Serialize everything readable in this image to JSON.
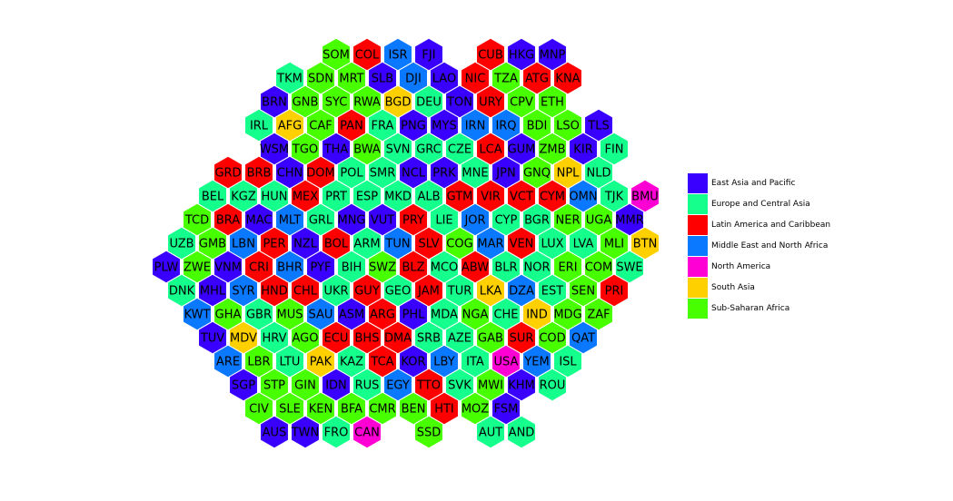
{
  "chart_data": {
    "type": "hexbin-map",
    "legend": {
      "placement": "right",
      "entries": [
        {
          "key": "EAP",
          "label": "East Asia and Pacific",
          "color": "#3A00FF"
        },
        {
          "key": "ECA",
          "label": "Europe and Central Asia",
          "color": "#14FF8C"
        },
        {
          "key": "LAC",
          "label": "Latin America and Caribbean",
          "color": "#FF0000"
        },
        {
          "key": "MENA",
          "label": "Middle East and North Africa",
          "color": "#0A78FF"
        },
        {
          "key": "NA",
          "label": "North America",
          "color": "#FF00D4"
        },
        {
          "key": "SA",
          "label": "South Asia",
          "color": "#FFD000"
        },
        {
          "key": "SSA",
          "label": "Sub-Saharan Africa",
          "color": "#48FF00"
        }
      ]
    },
    "rows": [
      {
        "cells": [
          [
            "SOM",
            "SSA",
            5
          ],
          [
            "COL",
            "LAC",
            6
          ],
          [
            "ISR",
            "MENA",
            7
          ],
          [
            "FJI",
            "EAP",
            8
          ],
          [
            "CUB",
            "LAC",
            10
          ],
          [
            "HKG",
            "EAP",
            11
          ],
          [
            "MNP",
            "EAP",
            12
          ]
        ]
      },
      {
        "cells": [
          [
            "TKM",
            "ECA",
            4
          ],
          [
            "SDN",
            "SSA",
            5
          ],
          [
            "MRT",
            "SSA",
            6
          ],
          [
            "SLB",
            "EAP",
            7
          ],
          [
            "DJI",
            "MENA",
            8
          ],
          [
            "LAO",
            "EAP",
            9
          ],
          [
            "NIC",
            "LAC",
            10
          ],
          [
            "TZA",
            "SSA",
            11
          ],
          [
            "ATG",
            "LAC",
            12
          ],
          [
            "KNA",
            "LAC",
            13
          ]
        ]
      },
      {
        "cells": [
          [
            "BRN",
            "EAP",
            3
          ],
          [
            "GNB",
            "SSA",
            4
          ],
          [
            "SYC",
            "SSA",
            5
          ],
          [
            "RWA",
            "SSA",
            6
          ],
          [
            "BGD",
            "SA",
            7
          ],
          [
            "DEU",
            "ECA",
            8
          ],
          [
            "TON",
            "EAP",
            9
          ],
          [
            "URY",
            "LAC",
            10
          ],
          [
            "CPV",
            "SSA",
            11
          ],
          [
            "ETH",
            "SSA",
            12
          ]
        ]
      },
      {
        "cells": [
          [
            "IRL",
            "ECA",
            3
          ],
          [
            "AFG",
            "SA",
            4
          ],
          [
            "CAF",
            "SSA",
            5
          ],
          [
            "PAN",
            "LAC",
            6
          ],
          [
            "FRA",
            "ECA",
            7
          ],
          [
            "PNG",
            "EAP",
            8
          ],
          [
            "MYS",
            "EAP",
            9
          ],
          [
            "IRN",
            "MENA",
            10
          ],
          [
            "IRQ",
            "MENA",
            11
          ],
          [
            "BDI",
            "SSA",
            12
          ],
          [
            "LSO",
            "SSA",
            13
          ],
          [
            "TLS",
            "EAP",
            14
          ]
        ]
      },
      {
        "cells": [
          [
            "WSM",
            "EAP",
            3
          ],
          [
            "TGO",
            "SSA",
            4
          ],
          [
            "THA",
            "EAP",
            5
          ],
          [
            "BWA",
            "SSA",
            6
          ],
          [
            "SVN",
            "ECA",
            7
          ],
          [
            "GRC",
            "ECA",
            8
          ],
          [
            "CZE",
            "ECA",
            9
          ],
          [
            "LCA",
            "LAC",
            10
          ],
          [
            "GUM",
            "EAP",
            11
          ],
          [
            "ZMB",
            "SSA",
            12
          ],
          [
            "KIR",
            "EAP",
            13
          ],
          [
            "FIN",
            "ECA",
            14
          ]
        ]
      },
      {
        "cells": [
          [
            "GRD",
            "LAC",
            2
          ],
          [
            "BRB",
            "LAC",
            3
          ],
          [
            "CHN",
            "EAP",
            4
          ],
          [
            "DOM",
            "LAC",
            5
          ],
          [
            "POL",
            "ECA",
            6
          ],
          [
            "SMR",
            "ECA",
            7
          ],
          [
            "NCL",
            "EAP",
            8
          ],
          [
            "PRK",
            "EAP",
            9
          ],
          [
            "MNE",
            "ECA",
            10
          ],
          [
            "JPN",
            "EAP",
            11
          ],
          [
            "GNQ",
            "SSA",
            12
          ],
          [
            "NPL",
            "SA",
            13
          ],
          [
            "NLD",
            "ECA",
            14
          ]
        ]
      },
      {
        "cells": [
          [
            "BEL",
            "ECA",
            1
          ],
          [
            "KGZ",
            "ECA",
            2
          ],
          [
            "HUN",
            "ECA",
            3
          ],
          [
            "MEX",
            "LAC",
            4
          ],
          [
            "PRT",
            "ECA",
            5
          ],
          [
            "ESP",
            "ECA",
            6
          ],
          [
            "MKD",
            "ECA",
            7
          ],
          [
            "ALB",
            "ECA",
            8
          ],
          [
            "GTM",
            "LAC",
            9
          ],
          [
            "VIR",
            "LAC",
            10
          ],
          [
            "VCT",
            "LAC",
            11
          ],
          [
            "CYM",
            "LAC",
            12
          ],
          [
            "OMN",
            "MENA",
            13
          ],
          [
            "TJK",
            "ECA",
            14
          ],
          [
            "BMU",
            "NA",
            15
          ]
        ]
      },
      {
        "cells": [
          [
            "TCD",
            "SSA",
            1
          ],
          [
            "BRA",
            "LAC",
            2
          ],
          [
            "MAC",
            "EAP",
            3
          ],
          [
            "MLT",
            "MENA",
            4
          ],
          [
            "GRL",
            "ECA",
            5
          ],
          [
            "MNG",
            "EAP",
            6
          ],
          [
            "VUT",
            "EAP",
            7
          ],
          [
            "PRY",
            "LAC",
            8
          ],
          [
            "LIE",
            "ECA",
            9
          ],
          [
            "JOR",
            "MENA",
            10
          ],
          [
            "CYP",
            "ECA",
            11
          ],
          [
            "BGR",
            "ECA",
            12
          ],
          [
            "NER",
            "SSA",
            13
          ],
          [
            "UGA",
            "SSA",
            14
          ],
          [
            "MMR",
            "EAP",
            15
          ]
        ]
      },
      {
        "cells": [
          [
            "UZB",
            "ECA",
            0
          ],
          [
            "GMB",
            "SSA",
            1
          ],
          [
            "LBN",
            "MENA",
            2
          ],
          [
            "PER",
            "LAC",
            3
          ],
          [
            "NZL",
            "EAP",
            4
          ],
          [
            "BOL",
            "LAC",
            5
          ],
          [
            "ARM",
            "ECA",
            6
          ],
          [
            "TUN",
            "MENA",
            7
          ],
          [
            "SLV",
            "LAC",
            8
          ],
          [
            "COG",
            "SSA",
            9
          ],
          [
            "MAR",
            "MENA",
            10
          ],
          [
            "VEN",
            "LAC",
            11
          ],
          [
            "LUX",
            "ECA",
            12
          ],
          [
            "LVA",
            "ECA",
            13
          ],
          [
            "MLI",
            "SSA",
            14
          ],
          [
            "BTN",
            "SA",
            15
          ]
        ]
      },
      {
        "cells": [
          [
            "PLW",
            "EAP",
            0
          ],
          [
            "ZWE",
            "SSA",
            1
          ],
          [
            "VNM",
            "EAP",
            2
          ],
          [
            "CRI",
            "LAC",
            3
          ],
          [
            "BHR",
            "MENA",
            4
          ],
          [
            "PYF",
            "EAP",
            5
          ],
          [
            "BIH",
            "ECA",
            6
          ],
          [
            "SWZ",
            "SSA",
            7
          ],
          [
            "BLZ",
            "LAC",
            8
          ],
          [
            "MCO",
            "ECA",
            9
          ],
          [
            "ABW",
            "LAC",
            10
          ],
          [
            "BLR",
            "ECA",
            11
          ],
          [
            "NOR",
            "ECA",
            12
          ],
          [
            "ERI",
            "SSA",
            13
          ],
          [
            "COM",
            "SSA",
            14
          ],
          [
            "SWE",
            "ECA",
            15
          ]
        ]
      },
      {
        "cells": [
          [
            "DNK",
            "ECA",
            0
          ],
          [
            "MHL",
            "EAP",
            1
          ],
          [
            "SYR",
            "MENA",
            2
          ],
          [
            "HND",
            "LAC",
            3
          ],
          [
            "CHL",
            "LAC",
            4
          ],
          [
            "UKR",
            "ECA",
            5
          ],
          [
            "GUY",
            "LAC",
            6
          ],
          [
            "GEO",
            "ECA",
            7
          ],
          [
            "JAM",
            "LAC",
            8
          ],
          [
            "TUR",
            "ECA",
            9
          ],
          [
            "LKA",
            "SA",
            10
          ],
          [
            "DZA",
            "MENA",
            11
          ],
          [
            "EST",
            "ECA",
            12
          ],
          [
            "SEN",
            "SSA",
            13
          ],
          [
            "PRI",
            "LAC",
            14
          ]
        ]
      },
      {
        "cells": [
          [
            "KWT",
            "MENA",
            1
          ],
          [
            "GHA",
            "SSA",
            2
          ],
          [
            "GBR",
            "ECA",
            3
          ],
          [
            "MUS",
            "SSA",
            4
          ],
          [
            "SAU",
            "MENA",
            5
          ],
          [
            "ASM",
            "EAP",
            6
          ],
          [
            "ARG",
            "LAC",
            7
          ],
          [
            "PHL",
            "EAP",
            8
          ],
          [
            "MDA",
            "ECA",
            9
          ],
          [
            "NGA",
            "SSA",
            10
          ],
          [
            "CHE",
            "ECA",
            11
          ],
          [
            "IND",
            "SA",
            12
          ],
          [
            "MDG",
            "SSA",
            13
          ],
          [
            "ZAF",
            "SSA",
            14
          ]
        ]
      },
      {
        "cells": [
          [
            "TUV",
            "EAP",
            1
          ],
          [
            "MDV",
            "SA",
            2
          ],
          [
            "HRV",
            "ECA",
            3
          ],
          [
            "AGO",
            "SSA",
            4
          ],
          [
            "ECU",
            "LAC",
            5
          ],
          [
            "BHS",
            "LAC",
            6
          ],
          [
            "DMA",
            "LAC",
            7
          ],
          [
            "SRB",
            "ECA",
            8
          ],
          [
            "AZE",
            "ECA",
            9
          ],
          [
            "GAB",
            "SSA",
            10
          ],
          [
            "SUR",
            "LAC",
            11
          ],
          [
            "COD",
            "SSA",
            12
          ],
          [
            "QAT",
            "MENA",
            13
          ]
        ]
      },
      {
        "cells": [
          [
            "ARE",
            "MENA",
            2
          ],
          [
            "LBR",
            "SSA",
            3
          ],
          [
            "LTU",
            "ECA",
            4
          ],
          [
            "PAK",
            "SA",
            5
          ],
          [
            "KAZ",
            "ECA",
            6
          ],
          [
            "TCA",
            "LAC",
            7
          ],
          [
            "KOR",
            "EAP",
            8
          ],
          [
            "LBY",
            "MENA",
            9
          ],
          [
            "ITA",
            "ECA",
            10
          ],
          [
            "USA",
            "NA",
            11
          ],
          [
            "YEM",
            "MENA",
            12
          ],
          [
            "ISL",
            "ECA",
            13
          ]
        ]
      },
      {
        "cells": [
          [
            "SGP",
            "EAP",
            2
          ],
          [
            "STP",
            "SSA",
            3
          ],
          [
            "GIN",
            "SSA",
            4
          ],
          [
            "IDN",
            "EAP",
            5
          ],
          [
            "RUS",
            "ECA",
            6
          ],
          [
            "EGY",
            "MENA",
            7
          ],
          [
            "TTO",
            "LAC",
            8
          ],
          [
            "SVK",
            "ECA",
            9
          ],
          [
            "MWI",
            "SSA",
            10
          ],
          [
            "KHM",
            "EAP",
            11
          ],
          [
            "ROU",
            "ECA",
            12
          ]
        ]
      },
      {
        "cells": [
          [
            "CIV",
            "SSA",
            3
          ],
          [
            "SLE",
            "SSA",
            4
          ],
          [
            "KEN",
            "SSA",
            5
          ],
          [
            "BFA",
            "SSA",
            6
          ],
          [
            "CMR",
            "SSA",
            7
          ],
          [
            "BEN",
            "SSA",
            8
          ],
          [
            "HTI",
            "LAC",
            9
          ],
          [
            "MOZ",
            "SSA",
            10
          ],
          [
            "FSM",
            "EAP",
            11
          ]
        ]
      },
      {
        "cells": [
          [
            "AUS",
            "EAP",
            3
          ],
          [
            "TWN",
            "EAP",
            4
          ],
          [
            "FRO",
            "ECA",
            5
          ],
          [
            "CAN",
            "NA",
            6
          ],
          [
            "SSD",
            "SSA",
            8
          ],
          [
            "AUT",
            "ECA",
            10
          ],
          [
            "AND",
            "ECA",
            11
          ]
        ]
      }
    ]
  }
}
